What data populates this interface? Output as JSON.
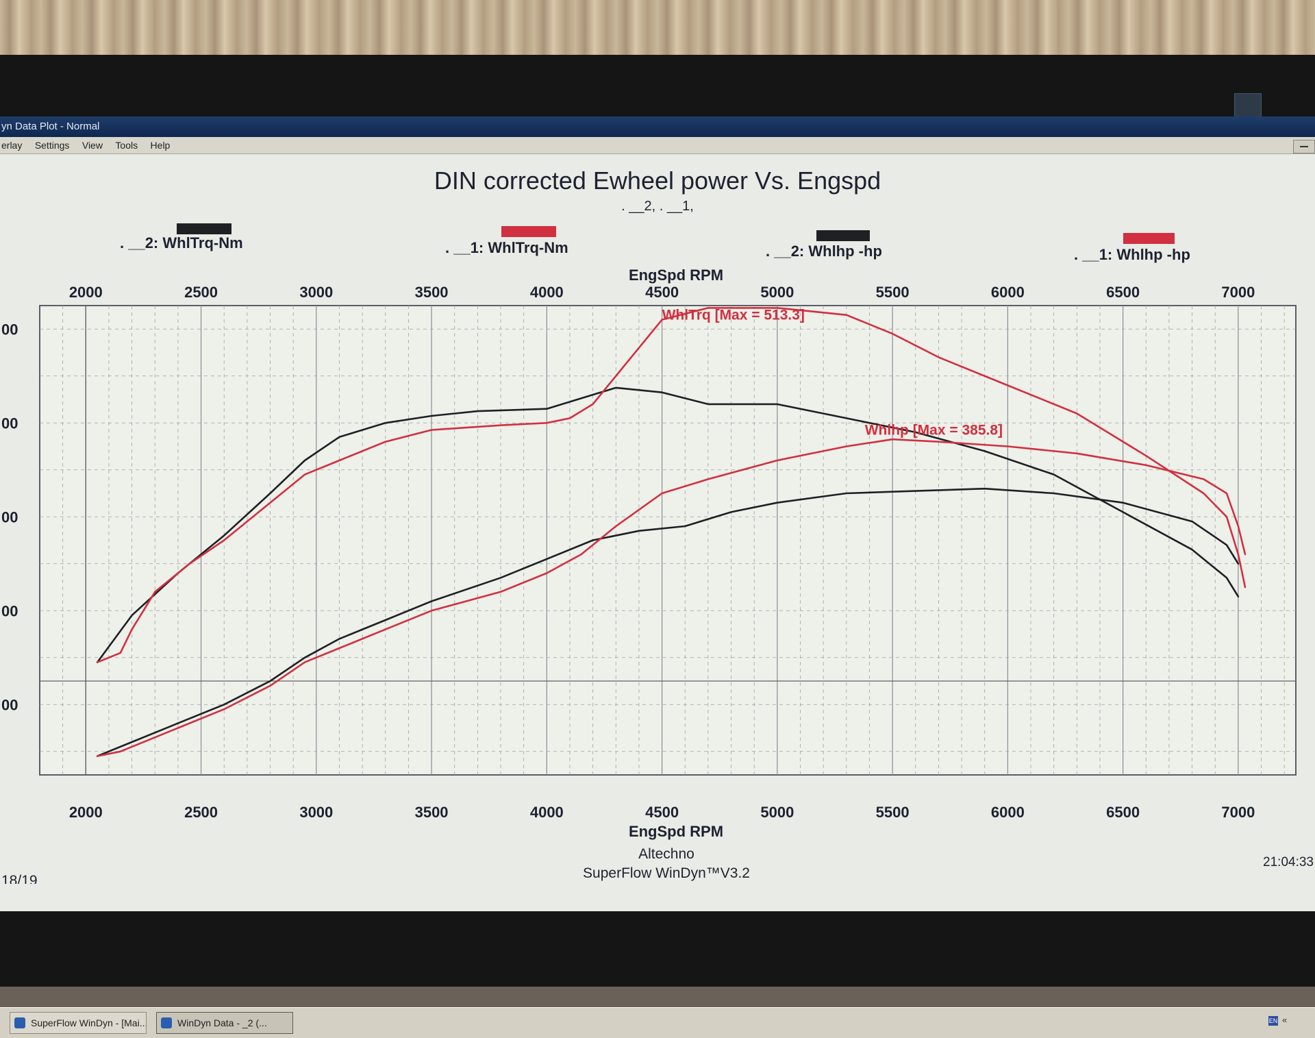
{
  "window": {
    "title": "yn Data Plot - Normal",
    "menu": [
      "erlay",
      "Settings",
      "View",
      "Tools",
      "Help"
    ]
  },
  "chart_data": {
    "type": "line",
    "title": "DIN corrected Ewheel power Vs. Engspd",
    "subtitle": ". __2, . __1,",
    "xlabel": "EngSpd RPM",
    "xlim": [
      1800,
      7250
    ],
    "xticks": [
      2000,
      2500,
      3000,
      3500,
      4000,
      4500,
      5000,
      5500,
      6000,
      6500,
      7000
    ],
    "ylim": [
      0,
      1
    ],
    "ytick_labels": [
      "00",
      "00",
      "00",
      "00",
      "00"
    ],
    "legend": [
      {
        "label": ". __2: WhlTrq-Nm",
        "color": "#1e2024"
      },
      {
        "label": ". __1: WhlTrq-Nm",
        "color": "#d03040"
      },
      {
        "label": ". __2: Whlhp -hp",
        "color": "#1e2024"
      },
      {
        "label": ". __1: Whlhp -hp",
        "color": "#d03040"
      }
    ],
    "annotations": [
      {
        "text": "WhlTrq [Max = 513.3]",
        "x": 4500,
        "y": 0.97,
        "color": "#d03040"
      },
      {
        "text": "Whlhp  [Max = 385.8]",
        "x": 5380,
        "y": 0.725,
        "color": "#d03040"
      }
    ],
    "series": [
      {
        "name": "2: WhlTrq-Nm",
        "color": "#1e2024",
        "x": [
          2050,
          2200,
          2400,
          2600,
          2800,
          2950,
          3100,
          3300,
          3500,
          3700,
          4000,
          4200,
          4300,
          4500,
          4700,
          5000,
          5300,
          5600,
          5900,
          6200,
          6500,
          6800,
          6950,
          7000
        ],
        "y": [
          0.24,
          0.34,
          0.43,
          0.51,
          0.6,
          0.67,
          0.72,
          0.75,
          0.765,
          0.775,
          0.78,
          0.81,
          0.825,
          0.815,
          0.79,
          0.79,
          0.76,
          0.73,
          0.69,
          0.64,
          0.56,
          0.48,
          0.42,
          0.38
        ]
      },
      {
        "name": "1: WhlTrq-Nm",
        "color": "#d03040",
        "x": [
          2050,
          2100,
          2150,
          2200,
          2300,
          2450,
          2600,
          2800,
          2950,
          3100,
          3300,
          3500,
          3800,
          4000,
          4100,
          4200,
          4350,
          4500,
          4700,
          5000,
          5300,
          5500,
          5700,
          6000,
          6300,
          6600,
          6850,
          6950,
          7000,
          7030
        ],
        "y": [
          0.24,
          0.25,
          0.26,
          0.31,
          0.39,
          0.45,
          0.5,
          0.58,
          0.64,
          0.67,
          0.71,
          0.735,
          0.745,
          0.75,
          0.76,
          0.79,
          0.88,
          0.97,
          0.995,
          0.995,
          0.98,
          0.94,
          0.89,
          0.83,
          0.77,
          0.68,
          0.6,
          0.55,
          0.47,
          0.4
        ]
      },
      {
        "name": "2: Whlhp -hp",
        "color": "#1e2024",
        "x": [
          2050,
          2200,
          2400,
          2600,
          2800,
          2950,
          3100,
          3300,
          3500,
          3800,
          4000,
          4200,
          4400,
          4600,
          4800,
          5000,
          5300,
          5600,
          5900,
          6200,
          6500,
          6800,
          6950,
          7000
        ],
        "y": [
          0.04,
          0.07,
          0.11,
          0.15,
          0.2,
          0.25,
          0.29,
          0.33,
          0.37,
          0.42,
          0.46,
          0.5,
          0.52,
          0.53,
          0.56,
          0.58,
          0.6,
          0.605,
          0.61,
          0.6,
          0.58,
          0.54,
          0.49,
          0.45
        ]
      },
      {
        "name": "1: Whlhp -hp",
        "color": "#d03040",
        "x": [
          2050,
          2150,
          2200,
          2400,
          2600,
          2800,
          2950,
          3100,
          3300,
          3500,
          3800,
          4000,
          4150,
          4300,
          4500,
          4700,
          5000,
          5300,
          5500,
          5700,
          6000,
          6300,
          6600,
          6850,
          6950,
          7000,
          7030
        ],
        "y": [
          0.04,
          0.05,
          0.06,
          0.1,
          0.14,
          0.19,
          0.24,
          0.27,
          0.31,
          0.35,
          0.39,
          0.43,
          0.47,
          0.53,
          0.6,
          0.63,
          0.67,
          0.7,
          0.715,
          0.71,
          0.7,
          0.685,
          0.66,
          0.63,
          0.6,
          0.53,
          0.47
        ]
      }
    ]
  },
  "footer": {
    "company": "Altechno",
    "software": "SuperFlow WinDyn™V3.2",
    "time": "21:04:33",
    "page": "18/19"
  },
  "taskbar": {
    "items": [
      "SuperFlow WinDyn - [Mai...",
      "WinDyn Data - _2 (..."
    ],
    "tray_lang": "EN",
    "tray_chevron": "«"
  }
}
